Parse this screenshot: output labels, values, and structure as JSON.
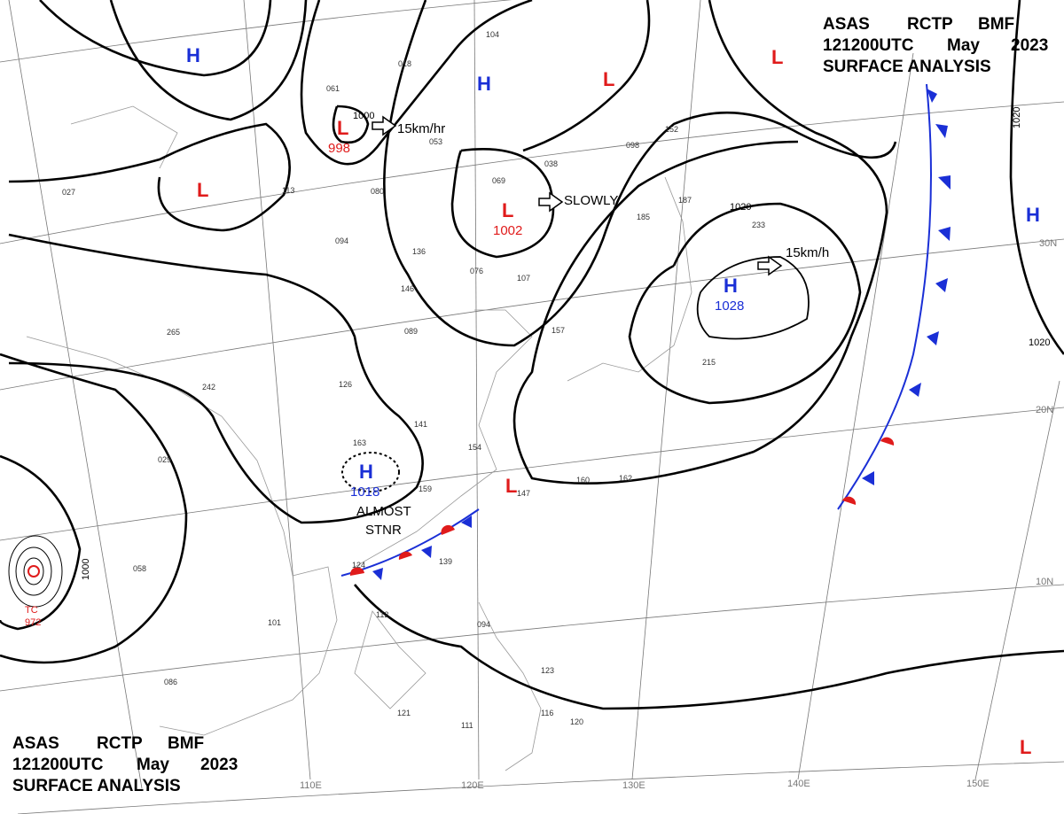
{
  "header_top": {
    "agency": "ASAS",
    "station": "RCTP",
    "office": "BMF",
    "time": "121200UTC",
    "month": "May",
    "year": "2023",
    "product": "SURFACE ANALYSIS"
  },
  "header_bottom": {
    "agency": "ASAS",
    "station": "RCTP",
    "office": "BMF",
    "time": "121200UTC",
    "month": "May",
    "year": "2023",
    "product": "SURFACE ANALYSIS"
  },
  "centers": [
    {
      "symbol": "H"
    },
    {
      "symbol": "H"
    },
    {
      "symbol": "L"
    },
    {
      "symbol": "L"
    },
    {
      "symbol": "L",
      "pressure": "998"
    },
    {
      "symbol": "L"
    },
    {
      "symbol": "L",
      "pressure": "1002"
    },
    {
      "symbol": "H",
      "pressure": "1028"
    },
    {
      "symbol": "H",
      "pressure": "1018"
    },
    {
      "symbol": "L"
    },
    {
      "symbol": "L"
    },
    {
      "symbol": "H"
    },
    {
      "symbol": "TC",
      "pressure": "972"
    }
  ],
  "movements": [
    "15km/hr",
    "SLOWLY",
    "15km/h",
    "ALMOST",
    "STNR"
  ],
  "isobar_labels": [
    "1000",
    "1020",
    "1020",
    "1020",
    "1000"
  ],
  "longitudes": [
    "110E",
    "120E",
    "130E",
    "140E",
    "150E"
  ],
  "latitudes": [
    "30N",
    "20N",
    "10N"
  ],
  "stations": [
    "104",
    "018",
    "061",
    "053",
    "069",
    "038",
    "080",
    "094",
    "136",
    "146",
    "076",
    "107",
    "089",
    "126",
    "242",
    "141",
    "163",
    "154",
    "159",
    "147",
    "139",
    "124",
    "112",
    "101",
    "086",
    "121",
    "111",
    "116",
    "120",
    "094",
    "123",
    "157",
    "185",
    "187",
    "215",
    "162",
    "160",
    "265",
    "058",
    "029",
    "113",
    "027",
    "098",
    "152",
    "233"
  ]
}
